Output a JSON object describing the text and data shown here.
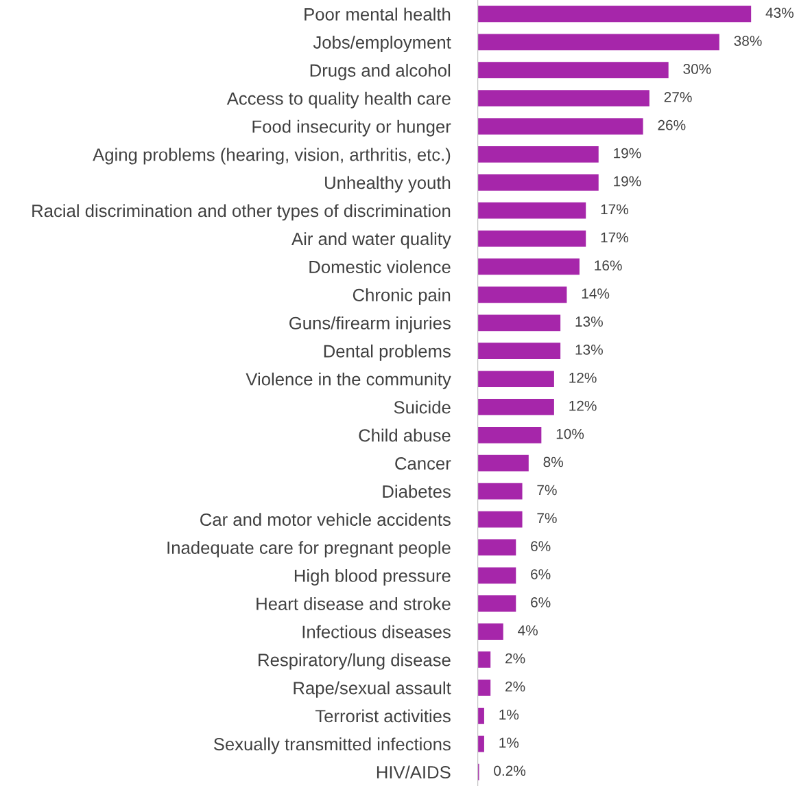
{
  "chart_data": {
    "type": "bar",
    "orientation": "horizontal",
    "color": "#a626aa",
    "categories": [
      "Poor mental health",
      "Jobs/employment",
      "Drugs and alcohol",
      "Access to quality health care",
      "Food insecurity or hunger",
      "Aging problems (hearing, vision, arthritis, etc.)",
      "Unhealthy youth",
      "Racial discrimination and other types of discrimination",
      "Air and water quality",
      "Domestic violence",
      "Chronic pain",
      "Guns/firearm injuries",
      "Dental problems",
      "Violence in the community",
      "Suicide",
      "Child abuse",
      "Cancer",
      "Diabetes",
      "Car and motor vehicle accidents",
      "Inadequate care for pregnant people",
      "High blood pressure",
      "Heart disease and stroke",
      "Infectious diseases",
      "Respiratory/lung disease",
      "Rape/sexual assault",
      "Terrorist activities",
      "Sexually transmitted infections",
      "HIV/AIDS"
    ],
    "values": [
      43,
      38,
      30,
      27,
      26,
      19,
      19,
      17,
      17,
      16,
      14,
      13,
      13,
      12,
      12,
      10,
      8,
      7,
      7,
      6,
      6,
      6,
      4,
      2,
      2,
      1,
      1,
      0.2
    ],
    "value_labels": [
      "43%",
      "38%",
      "30%",
      "27%",
      "26%",
      "19%",
      "19%",
      "17%",
      "17%",
      "16%",
      "14%",
      "13%",
      "13%",
      "12%",
      "12%",
      "10%",
      "8%",
      "7%",
      "7%",
      "6%",
      "6%",
      "6%",
      "4%",
      "2%",
      "2%",
      "1%",
      "1%",
      "0.2%"
    ],
    "grid": false,
    "legend": false
  }
}
